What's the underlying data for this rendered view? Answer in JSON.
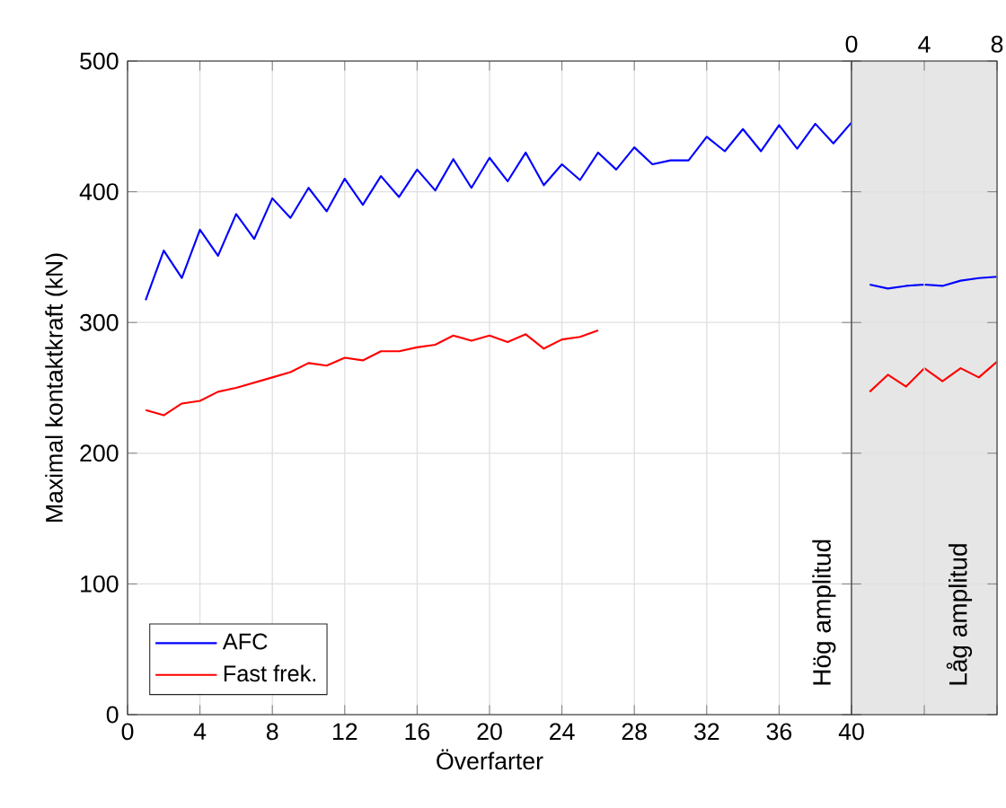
{
  "chart_data": [
    {
      "type": "line",
      "xlabel": "Överfarter",
      "ylabel": "Maximal kontaktkraft (kN)",
      "xlim": [
        0,
        40
      ],
      "ylim": [
        0,
        500
      ],
      "xticks": [
        0,
        4,
        8,
        12,
        16,
        20,
        24,
        28,
        32,
        36,
        40
      ],
      "yticks": [
        0,
        100,
        200,
        300,
        400,
        500
      ],
      "grid": true,
      "legend": "bottom left",
      "annotations": [
        "Hög amplitud"
      ],
      "series": [
        {
          "name": "AFC",
          "color": "#0000ff",
          "x": [
            1,
            2,
            3,
            4,
            5,
            6,
            7,
            8,
            9,
            10,
            11,
            12,
            13,
            14,
            15,
            16,
            17,
            18,
            19,
            20,
            21,
            22,
            23,
            24,
            25,
            26,
            27,
            28,
            29,
            30,
            31,
            32,
            33,
            34,
            35,
            36,
            37,
            38,
            39,
            40
          ],
          "values": [
            317,
            355,
            334,
            371,
            351,
            383,
            364,
            395,
            380,
            403,
            385,
            410,
            390,
            412,
            396,
            417,
            401,
            425,
            403,
            426,
            408,
            430,
            405,
            421,
            409,
            430,
            417,
            434,
            421,
            424,
            424,
            442,
            431,
            448,
            431,
            451,
            433,
            452,
            437,
            453
          ]
        },
        {
          "name": "Fast frek.",
          "color": "#ff0000",
          "x": [
            1,
            2,
            3,
            4,
            5,
            6,
            7,
            8,
            9,
            10,
            11,
            12,
            13,
            14,
            15,
            16,
            17,
            18,
            19,
            20,
            21,
            22,
            23,
            24,
            25,
            26
          ],
          "values": [
            233,
            229,
            238,
            240,
            247,
            250,
            254,
            258,
            262,
            269,
            267,
            273,
            271,
            278,
            278,
            281,
            283,
            290,
            286,
            290,
            285,
            291,
            280,
            287,
            289,
            294
          ]
        }
      ]
    },
    {
      "type": "line",
      "xlim": [
        0,
        8
      ],
      "ylim": [
        0,
        500
      ],
      "xticks": [
        0,
        4,
        8
      ],
      "yticks": [
        0,
        100,
        200,
        300,
        400,
        500
      ],
      "grid": true,
      "tick_labels": "x",
      "bands": [
        {
          "axis": "x",
          "from": 0,
          "to": 8,
          "label": "Låg amplitud",
          "color": "#e6e6e6"
        }
      ],
      "series": [
        {
          "color": "#0000ff",
          "x": [
            1,
            2,
            3,
            4,
            5,
            6,
            7,
            8
          ],
          "values": [
            329,
            326,
            328,
            329,
            328,
            332,
            334,
            335
          ]
        },
        {
          "color": "#ff0000",
          "x": [
            1,
            2,
            3,
            4,
            5,
            6,
            7,
            8
          ],
          "values": [
            247,
            260,
            251,
            265,
            255,
            265,
            258,
            270
          ]
        }
      ]
    }
  ]
}
